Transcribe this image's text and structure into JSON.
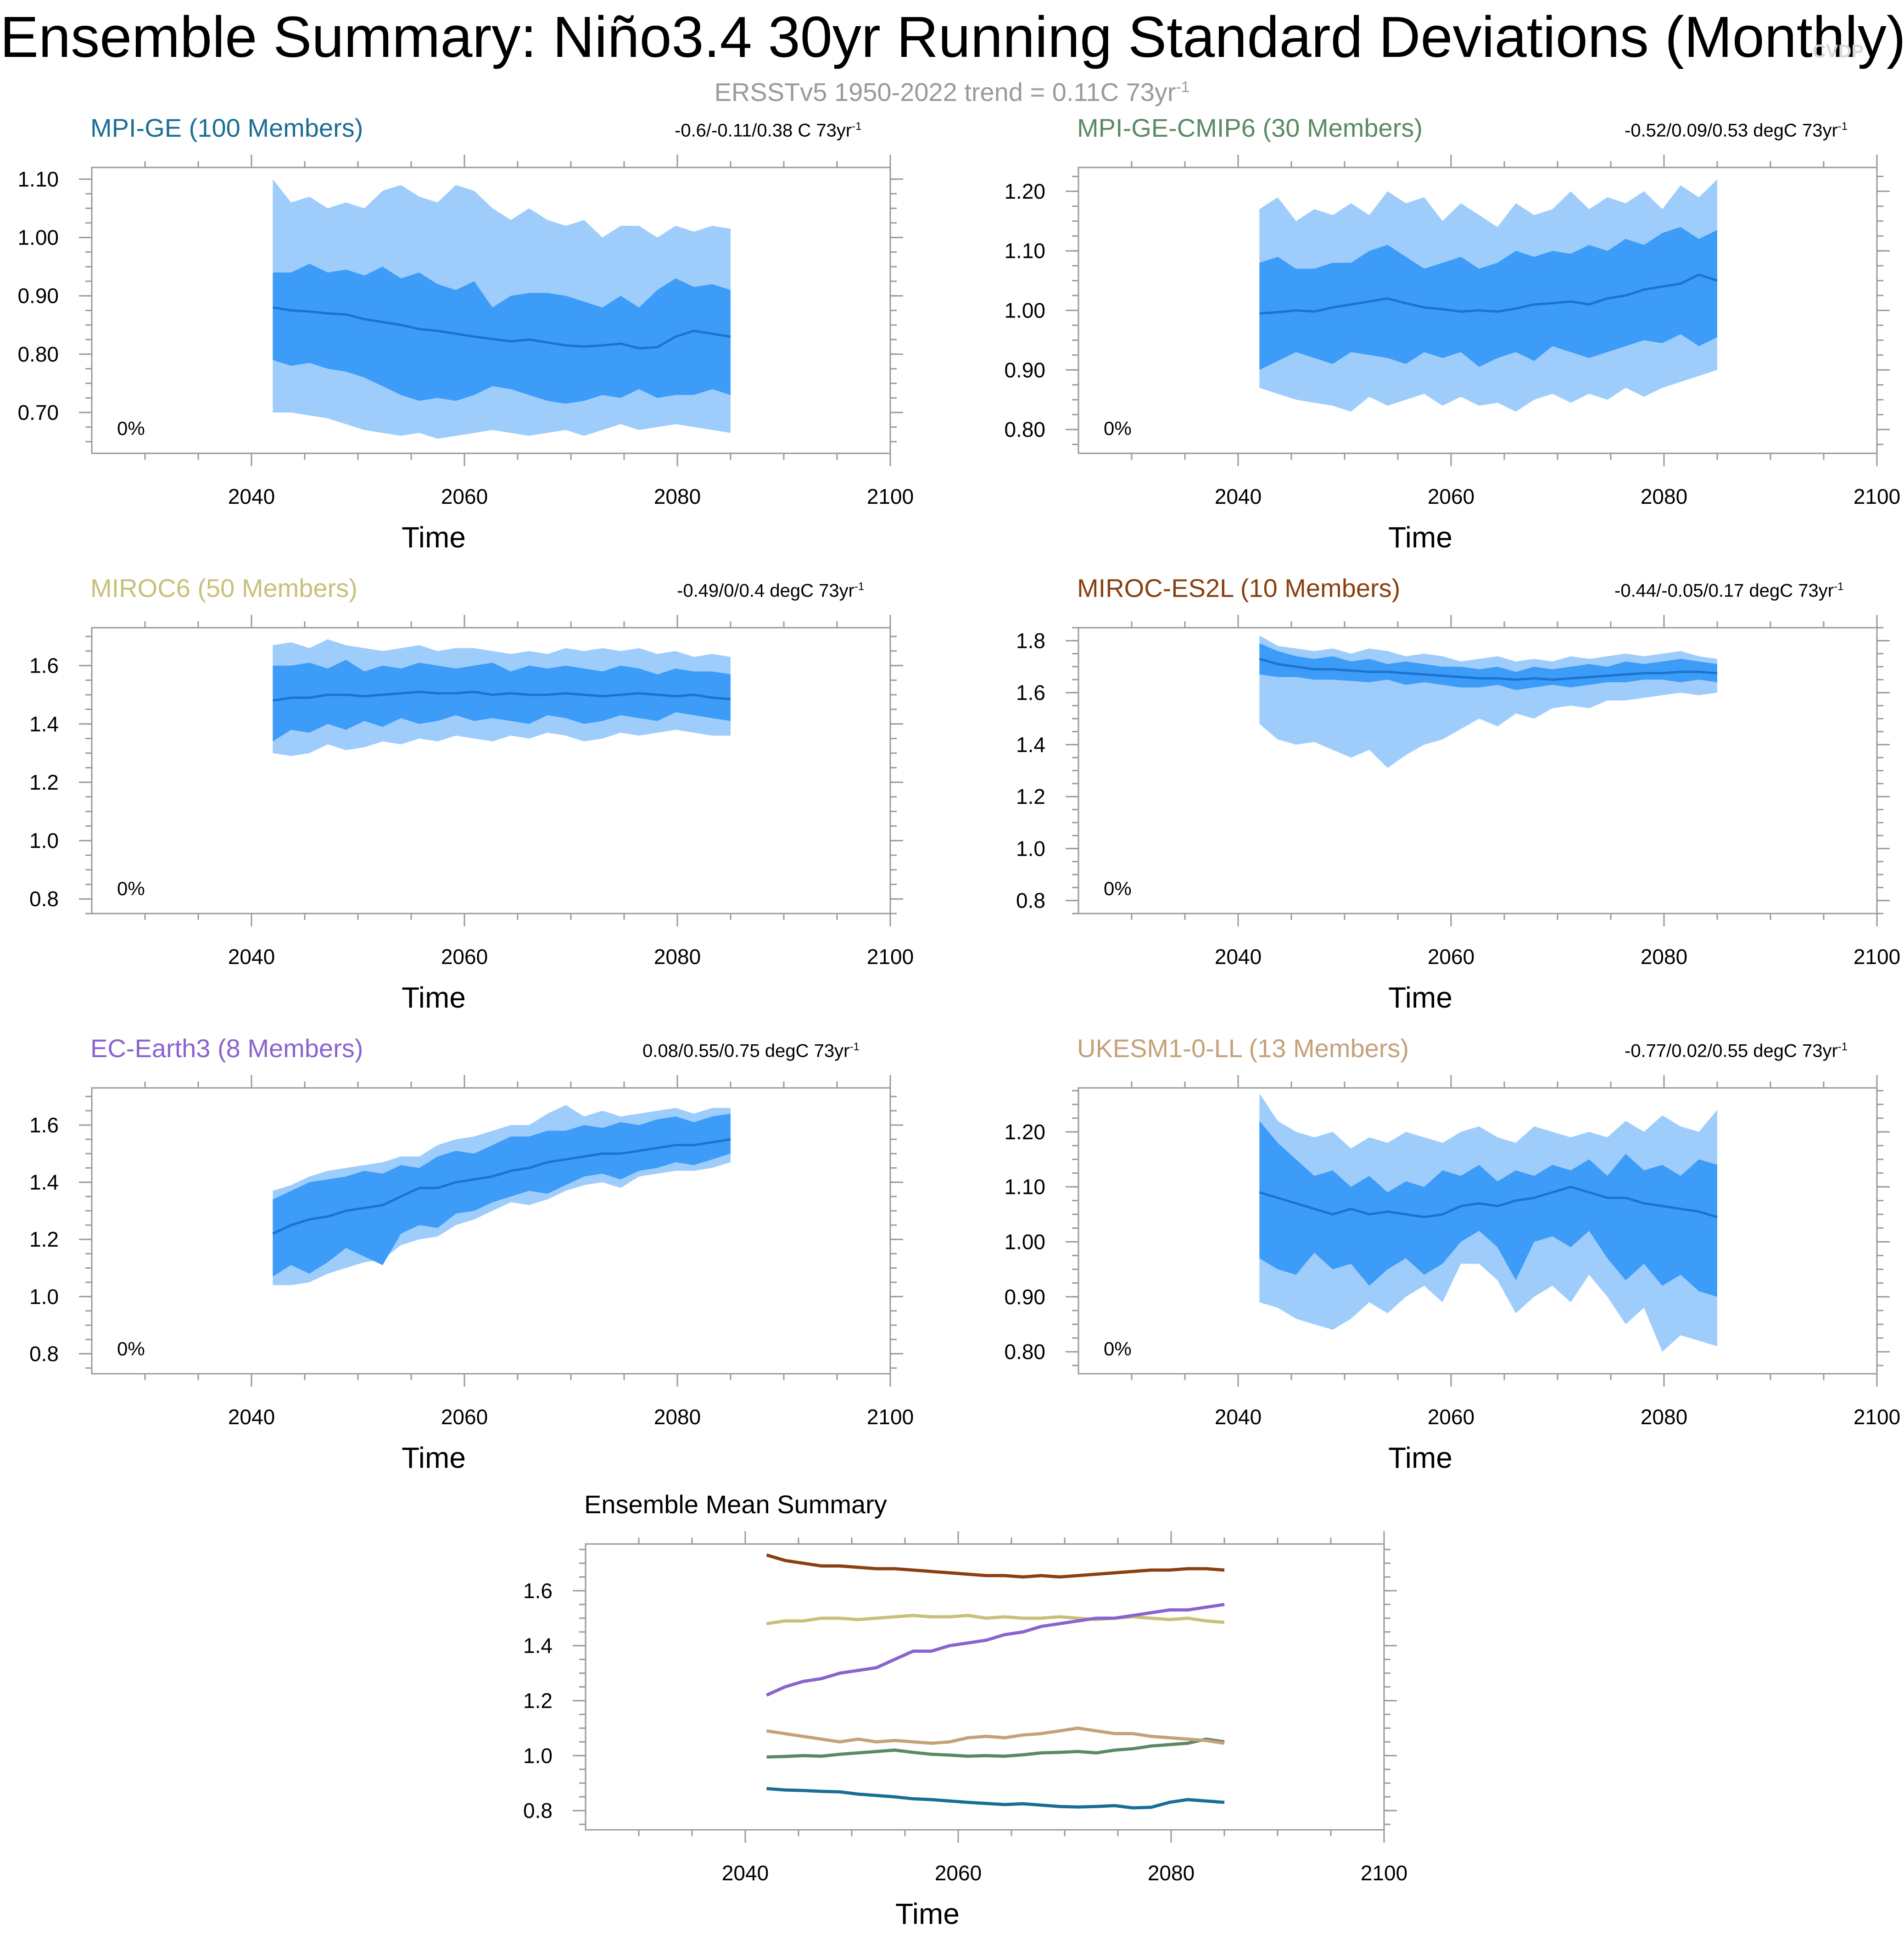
{
  "title": "Ensemble Summary: Niño3.4 30yr Running Standard Deviations (Monthly)",
  "subtitle": {
    "text": "ERSSTv5 1950-2022 trend = 0.11C 73yr",
    "sup": "-1"
  },
  "watermark": "CVDP",
  "chart_data": [
    {
      "id": "mpi-ge",
      "type": "area",
      "title": "MPI-GE (100 Members)",
      "title_color": "#1a6e96",
      "trend": "-0.6/-0.11/0.38 C 73yr",
      "trend_sup": "-1",
      "xlabel": "Time",
      "pct": "0%",
      "xlim": [
        2025,
        2100
      ],
      "xticks": [
        2040,
        2060,
        2080,
        2100
      ],
      "ylim": [
        0.63,
        1.12
      ],
      "yticks": [
        0.7,
        0.8,
        0.9,
        1.0,
        1.1
      ],
      "ytick_labels": [
        "0.70",
        "0.80",
        "0.90",
        "1.00",
        "1.10"
      ],
      "x_start": 2042,
      "x_end": 2085,
      "mean": [
        0.88,
        0.875,
        0.873,
        0.87,
        0.868,
        0.86,
        0.855,
        0.85,
        0.843,
        0.84,
        0.835,
        0.83,
        0.826,
        0.822,
        0.825,
        0.82,
        0.815,
        0.813,
        0.815,
        0.818,
        0.81,
        0.812,
        0.83,
        0.84,
        0.835,
        0.83
      ],
      "inner_lo": [
        0.79,
        0.78,
        0.785,
        0.775,
        0.77,
        0.76,
        0.745,
        0.73,
        0.72,
        0.725,
        0.72,
        0.73,
        0.745,
        0.74,
        0.73,
        0.72,
        0.715,
        0.72,
        0.73,
        0.725,
        0.74,
        0.725,
        0.73,
        0.73,
        0.74,
        0.73
      ],
      "inner_hi": [
        0.94,
        0.94,
        0.955,
        0.94,
        0.945,
        0.935,
        0.95,
        0.93,
        0.94,
        0.92,
        0.91,
        0.925,
        0.88,
        0.9,
        0.905,
        0.905,
        0.9,
        0.89,
        0.88,
        0.9,
        0.88,
        0.91,
        0.93,
        0.915,
        0.92,
        0.91
      ],
      "outer_lo": [
        0.7,
        0.7,
        0.695,
        0.69,
        0.68,
        0.67,
        0.665,
        0.66,
        0.665,
        0.655,
        0.66,
        0.665,
        0.67,
        0.665,
        0.66,
        0.665,
        0.67,
        0.66,
        0.67,
        0.68,
        0.67,
        0.675,
        0.68,
        0.675,
        0.67,
        0.665
      ],
      "outer_hi": [
        1.1,
        1.06,
        1.07,
        1.05,
        1.06,
        1.05,
        1.08,
        1.09,
        1.07,
        1.06,
        1.09,
        1.08,
        1.05,
        1.03,
        1.05,
        1.03,
        1.02,
        1.03,
        1.0,
        1.02,
        1.02,
        1.0,
        1.02,
        1.01,
        1.02,
        1.015
      ]
    },
    {
      "id": "mpi-ge-cmip6",
      "type": "area",
      "title": "MPI-GE-CMIP6 (30 Members)",
      "title_color": "#5a8a64",
      "trend": "-0.52/0.09/0.53 degC 73yr",
      "trend_sup": "-1",
      "xlabel": "Time",
      "pct": "0%",
      "xlim": [
        2025,
        2100
      ],
      "xticks": [
        2040,
        2060,
        2080,
        2100
      ],
      "ylim": [
        0.76,
        1.24
      ],
      "yticks": [
        0.8,
        0.9,
        1.0,
        1.1,
        1.2
      ],
      "ytick_labels": [
        "0.80",
        "0.90",
        "1.00",
        "1.10",
        "1.20"
      ],
      "x_start": 2042,
      "x_end": 2085,
      "mean": [
        0.995,
        0.997,
        1.0,
        0.998,
        1.005,
        1.01,
        1.015,
        1.02,
        1.012,
        1.005,
        1.002,
        0.998,
        1.0,
        0.998,
        1.003,
        1.01,
        1.012,
        1.015,
        1.01,
        1.02,
        1.025,
        1.035,
        1.04,
        1.045,
        1.06,
        1.05
      ],
      "inner_lo": [
        0.9,
        0.915,
        0.93,
        0.92,
        0.91,
        0.93,
        0.925,
        0.92,
        0.91,
        0.93,
        0.92,
        0.93,
        0.905,
        0.92,
        0.93,
        0.915,
        0.94,
        0.93,
        0.92,
        0.93,
        0.94,
        0.95,
        0.945,
        0.96,
        0.94,
        0.955
      ],
      "inner_hi": [
        1.08,
        1.09,
        1.07,
        1.07,
        1.08,
        1.08,
        1.1,
        1.11,
        1.09,
        1.07,
        1.08,
        1.09,
        1.07,
        1.08,
        1.1,
        1.09,
        1.1,
        1.095,
        1.11,
        1.1,
        1.12,
        1.11,
        1.13,
        1.14,
        1.12,
        1.135
      ],
      "outer_lo": [
        0.87,
        0.86,
        0.85,
        0.845,
        0.84,
        0.83,
        0.855,
        0.84,
        0.85,
        0.86,
        0.84,
        0.855,
        0.84,
        0.845,
        0.83,
        0.85,
        0.86,
        0.845,
        0.86,
        0.85,
        0.87,
        0.855,
        0.87,
        0.88,
        0.89,
        0.9
      ],
      "outer_hi": [
        1.17,
        1.19,
        1.15,
        1.17,
        1.16,
        1.18,
        1.16,
        1.2,
        1.18,
        1.19,
        1.15,
        1.18,
        1.16,
        1.14,
        1.18,
        1.16,
        1.17,
        1.2,
        1.17,
        1.19,
        1.18,
        1.2,
        1.17,
        1.21,
        1.19,
        1.22
      ]
    },
    {
      "id": "miroc6",
      "type": "area",
      "title": "MIROC6 (50 Members)",
      "title_color": "#c8c07a",
      "trend": "-0.49/0/0.4 degC 73yr",
      "trend_sup": "-1",
      "xlabel": "Time",
      "pct": "0%",
      "xlim": [
        2025,
        2100
      ],
      "xticks": [
        2040,
        2060,
        2080,
        2100
      ],
      "ylim": [
        0.75,
        1.73
      ],
      "yticks": [
        0.8,
        1.0,
        1.2,
        1.4,
        1.6
      ],
      "ytick_labels": [
        "0.8",
        "1.0",
        "1.2",
        "1.4",
        "1.6"
      ],
      "x_start": 2042,
      "x_end": 2085,
      "mean": [
        1.48,
        1.49,
        1.49,
        1.5,
        1.5,
        1.495,
        1.5,
        1.505,
        1.51,
        1.505,
        1.505,
        1.51,
        1.5,
        1.505,
        1.5,
        1.5,
        1.505,
        1.5,
        1.495,
        1.5,
        1.505,
        1.5,
        1.495,
        1.5,
        1.49,
        1.485
      ],
      "inner_lo": [
        1.34,
        1.38,
        1.37,
        1.4,
        1.38,
        1.41,
        1.39,
        1.42,
        1.4,
        1.41,
        1.43,
        1.41,
        1.42,
        1.41,
        1.4,
        1.43,
        1.42,
        1.4,
        1.41,
        1.43,
        1.42,
        1.41,
        1.44,
        1.43,
        1.42,
        1.41
      ],
      "inner_hi": [
        1.6,
        1.6,
        1.61,
        1.59,
        1.62,
        1.58,
        1.6,
        1.59,
        1.61,
        1.6,
        1.59,
        1.6,
        1.61,
        1.58,
        1.6,
        1.59,
        1.6,
        1.59,
        1.58,
        1.6,
        1.59,
        1.57,
        1.59,
        1.58,
        1.58,
        1.57
      ],
      "outer_lo": [
        1.3,
        1.29,
        1.3,
        1.33,
        1.31,
        1.32,
        1.34,
        1.33,
        1.35,
        1.34,
        1.36,
        1.35,
        1.34,
        1.36,
        1.35,
        1.37,
        1.36,
        1.34,
        1.35,
        1.37,
        1.36,
        1.37,
        1.38,
        1.37,
        1.36,
        1.36
      ],
      "outer_hi": [
        1.67,
        1.68,
        1.66,
        1.69,
        1.67,
        1.66,
        1.65,
        1.66,
        1.67,
        1.65,
        1.66,
        1.66,
        1.65,
        1.64,
        1.65,
        1.64,
        1.66,
        1.65,
        1.66,
        1.65,
        1.66,
        1.64,
        1.65,
        1.63,
        1.64,
        1.63
      ]
    },
    {
      "id": "miroc-es2l",
      "type": "area",
      "title": "MIROC-ES2L (10 Members)",
      "title_color": "#8a4010",
      "trend": "-0.44/-0.05/0.17 degC 73yr",
      "trend_sup": "-1",
      "xlabel": "Time",
      "pct": "0%",
      "xlim": [
        2025,
        2100
      ],
      "xticks": [
        2040,
        2060,
        2080,
        2100
      ],
      "ylim": [
        0.75,
        1.85
      ],
      "yticks": [
        0.8,
        1.0,
        1.2,
        1.4,
        1.6,
        1.8
      ],
      "ytick_labels": [
        "0.8",
        "1.0",
        "1.2",
        "1.4",
        "1.6",
        "1.8"
      ],
      "x_start": 2042,
      "x_end": 2085,
      "mean": [
        1.73,
        1.71,
        1.7,
        1.69,
        1.69,
        1.685,
        1.68,
        1.68,
        1.675,
        1.67,
        1.665,
        1.66,
        1.655,
        1.655,
        1.65,
        1.655,
        1.65,
        1.655,
        1.66,
        1.665,
        1.67,
        1.675,
        1.675,
        1.68,
        1.68,
        1.675
      ],
      "inner_lo": [
        1.67,
        1.66,
        1.66,
        1.65,
        1.65,
        1.645,
        1.64,
        1.65,
        1.63,
        1.64,
        1.63,
        1.62,
        1.62,
        1.63,
        1.61,
        1.62,
        1.63,
        1.62,
        1.63,
        1.64,
        1.64,
        1.65,
        1.65,
        1.64,
        1.65,
        1.64
      ],
      "inner_hi": [
        1.79,
        1.76,
        1.74,
        1.73,
        1.74,
        1.72,
        1.73,
        1.71,
        1.72,
        1.71,
        1.7,
        1.7,
        1.69,
        1.7,
        1.68,
        1.7,
        1.69,
        1.7,
        1.71,
        1.7,
        1.72,
        1.71,
        1.72,
        1.73,
        1.72,
        1.71
      ],
      "outer_lo": [
        1.48,
        1.42,
        1.4,
        1.41,
        1.38,
        1.35,
        1.38,
        1.31,
        1.36,
        1.4,
        1.42,
        1.46,
        1.5,
        1.47,
        1.52,
        1.5,
        1.54,
        1.55,
        1.54,
        1.57,
        1.57,
        1.58,
        1.59,
        1.6,
        1.59,
        1.6
      ],
      "outer_hi": [
        1.82,
        1.78,
        1.77,
        1.76,
        1.77,
        1.75,
        1.77,
        1.76,
        1.74,
        1.75,
        1.74,
        1.72,
        1.73,
        1.74,
        1.72,
        1.73,
        1.72,
        1.74,
        1.73,
        1.74,
        1.75,
        1.74,
        1.75,
        1.76,
        1.74,
        1.73
      ]
    },
    {
      "id": "ec-earth3",
      "type": "area",
      "title": "EC-Earth3 (8 Members)",
      "title_color": "#8a63cf",
      "trend": "0.08/0.55/0.75 degC 73yr",
      "trend_sup": "-1",
      "xlabel": "Time",
      "pct": "0%",
      "xlim": [
        2025,
        2100
      ],
      "xticks": [
        2040,
        2060,
        2080,
        2100
      ],
      "ylim": [
        0.73,
        1.73
      ],
      "yticks": [
        0.8,
        1.0,
        1.2,
        1.4,
        1.6
      ],
      "ytick_labels": [
        "0.8",
        "1.0",
        "1.2",
        "1.4",
        "1.6"
      ],
      "x_start": 2042,
      "x_end": 2085,
      "mean": [
        1.22,
        1.25,
        1.27,
        1.28,
        1.3,
        1.31,
        1.32,
        1.35,
        1.38,
        1.38,
        1.4,
        1.41,
        1.42,
        1.44,
        1.45,
        1.47,
        1.48,
        1.49,
        1.5,
        1.5,
        1.51,
        1.52,
        1.53,
        1.53,
        1.54,
        1.55
      ],
      "inner_lo": [
        1.07,
        1.11,
        1.08,
        1.12,
        1.17,
        1.14,
        1.11,
        1.22,
        1.25,
        1.24,
        1.29,
        1.3,
        1.33,
        1.35,
        1.37,
        1.36,
        1.39,
        1.42,
        1.43,
        1.41,
        1.44,
        1.45,
        1.47,
        1.46,
        1.48,
        1.5
      ],
      "inner_hi": [
        1.34,
        1.37,
        1.4,
        1.41,
        1.42,
        1.44,
        1.43,
        1.46,
        1.45,
        1.49,
        1.51,
        1.5,
        1.53,
        1.56,
        1.56,
        1.58,
        1.58,
        1.6,
        1.59,
        1.61,
        1.6,
        1.62,
        1.63,
        1.61,
        1.63,
        1.64
      ],
      "outer_lo": [
        1.04,
        1.04,
        1.05,
        1.08,
        1.1,
        1.12,
        1.13,
        1.18,
        1.2,
        1.21,
        1.25,
        1.27,
        1.3,
        1.33,
        1.32,
        1.34,
        1.37,
        1.39,
        1.4,
        1.38,
        1.42,
        1.43,
        1.44,
        1.44,
        1.45,
        1.47
      ],
      "outer_hi": [
        1.37,
        1.39,
        1.42,
        1.44,
        1.45,
        1.46,
        1.47,
        1.49,
        1.49,
        1.53,
        1.55,
        1.56,
        1.58,
        1.6,
        1.6,
        1.64,
        1.67,
        1.63,
        1.65,
        1.63,
        1.64,
        1.65,
        1.66,
        1.64,
        1.66,
        1.66
      ]
    },
    {
      "id": "ukesm1-0-ll",
      "type": "area",
      "title": "UKESM1-0-LL (13 Members)",
      "title_color": "#c4a17a",
      "trend": "-0.77/0.02/0.55 degC 73yr",
      "trend_sup": "-1",
      "xlabel": "Time",
      "pct": "0%",
      "xlim": [
        2025,
        2100
      ],
      "xticks": [
        2040,
        2060,
        2080,
        2100
      ],
      "ylim": [
        0.76,
        1.28
      ],
      "yticks": [
        0.8,
        0.9,
        1.0,
        1.1,
        1.2
      ],
      "ytick_labels": [
        "0.80",
        "0.90",
        "1.00",
        "1.10",
        "1.20"
      ],
      "x_start": 2042,
      "x_end": 2085,
      "mean": [
        1.09,
        1.08,
        1.07,
        1.06,
        1.05,
        1.06,
        1.05,
        1.055,
        1.05,
        1.045,
        1.05,
        1.065,
        1.07,
        1.065,
        1.075,
        1.08,
        1.09,
        1.1,
        1.09,
        1.08,
        1.08,
        1.07,
        1.065,
        1.06,
        1.055,
        1.045
      ],
      "inner_lo": [
        0.97,
        0.95,
        0.94,
        0.98,
        0.95,
        0.96,
        0.92,
        0.95,
        0.97,
        0.94,
        0.96,
        1.0,
        1.02,
        0.99,
        0.93,
        1.0,
        1.01,
        0.99,
        1.02,
        0.97,
        0.93,
        0.96,
        0.92,
        0.94,
        0.91,
        0.9
      ],
      "inner_hi": [
        1.22,
        1.18,
        1.15,
        1.12,
        1.13,
        1.1,
        1.12,
        1.09,
        1.11,
        1.1,
        1.13,
        1.12,
        1.14,
        1.11,
        1.13,
        1.12,
        1.14,
        1.13,
        1.15,
        1.12,
        1.16,
        1.13,
        1.14,
        1.12,
        1.15,
        1.14
      ],
      "outer_lo": [
        0.89,
        0.88,
        0.86,
        0.85,
        0.84,
        0.86,
        0.89,
        0.87,
        0.9,
        0.92,
        0.89,
        0.96,
        0.96,
        0.93,
        0.87,
        0.9,
        0.92,
        0.89,
        0.94,
        0.9,
        0.85,
        0.88,
        0.8,
        0.83,
        0.82,
        0.81
      ],
      "outer_hi": [
        1.27,
        1.22,
        1.2,
        1.19,
        1.2,
        1.17,
        1.19,
        1.18,
        1.2,
        1.19,
        1.18,
        1.2,
        1.21,
        1.19,
        1.18,
        1.21,
        1.2,
        1.19,
        1.2,
        1.19,
        1.22,
        1.2,
        1.23,
        1.21,
        1.2,
        1.24
      ]
    }
  ],
  "summary": {
    "title": "Ensemble Mean Summary",
    "xlabel": "Time",
    "xlim": [
      2025,
      2100
    ],
    "xticks": [
      2040,
      2060,
      2080,
      2100
    ],
    "ylim": [
      0.73,
      1.77
    ],
    "yticks": [
      0.8,
      1.0,
      1.2,
      1.4,
      1.6
    ],
    "ytick_labels": [
      "0.8",
      "1.0",
      "1.2",
      "1.4",
      "1.6"
    ],
    "x_start": 2042,
    "x_end": 2085
  },
  "colors": {
    "outer_band": "#9fcdfb",
    "inner_band": "#3c9cf8",
    "mean_line": "#1a74d0",
    "frame": "#9a9a9a"
  }
}
